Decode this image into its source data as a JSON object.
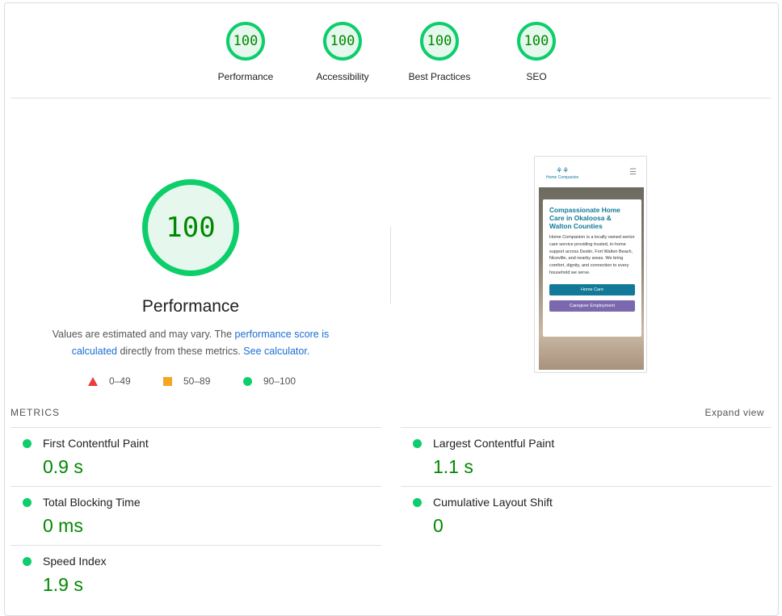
{
  "gauges": [
    {
      "score": "100",
      "label": "Performance"
    },
    {
      "score": "100",
      "label": "Accessibility"
    },
    {
      "score": "100",
      "label": "Best Practices"
    },
    {
      "score": "100",
      "label": "SEO"
    }
  ],
  "main": {
    "score": "100",
    "title": "Performance",
    "desc_pre": "Values are estimated and may vary. The ",
    "desc_link1": "performance score is calculated",
    "desc_mid": " directly from these metrics. ",
    "desc_link2": "See calculator."
  },
  "legend": [
    "0–49",
    "50–89",
    "90–100"
  ],
  "colors": {
    "pass": "#0cce6b",
    "average": "#f5a623",
    "fail": "#eb3b3b",
    "value": "#008800"
  },
  "screenshot": {
    "logo": "Home Companion",
    "heading": "Compassionate Home Care in Okaloosa & Walton Counties",
    "body": "Home Companion is a locally owned senior care service providing trusted, in-home support across Destin, Fort Walton Beach, Niceville, and nearby areas. We bring comfort, dignity, and connection to every household we serve.",
    "btn1": "Home Care",
    "btn2": "Caregiver Employment"
  },
  "metrics": {
    "header": "METRICS",
    "expand": "Expand view",
    "items": [
      {
        "name": "First Contentful Paint",
        "value": "0.9 s"
      },
      {
        "name": "Largest Contentful Paint",
        "value": "1.1 s"
      },
      {
        "name": "Total Blocking Time",
        "value": "0 ms"
      },
      {
        "name": "Cumulative Layout Shift",
        "value": "0"
      },
      {
        "name": "Speed Index",
        "value": "1.9 s"
      }
    ]
  }
}
